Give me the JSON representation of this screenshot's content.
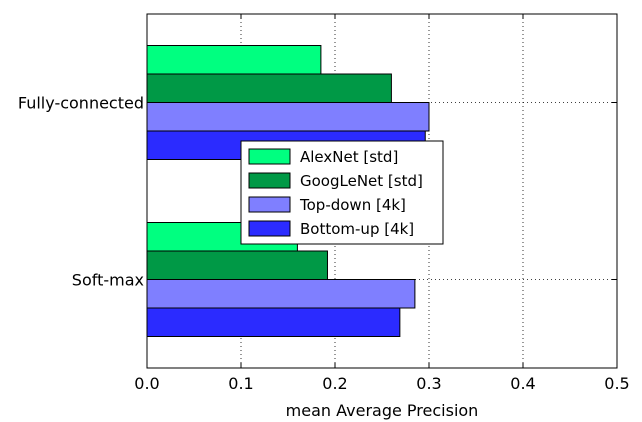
{
  "chart_data": {
    "type": "bar",
    "orientation": "horizontal",
    "categories": [
      "Fully-connected",
      "Soft-max"
    ],
    "series": [
      {
        "name": "AlexNet [std]",
        "color": "#00ff80",
        "values": [
          0.185,
          0.16
        ]
      },
      {
        "name": "GoogLeNet [std]",
        "color": "#009946",
        "values": [
          0.26,
          0.192
        ]
      },
      {
        "name": "Top-down [4k]",
        "color": "#7f7fff",
        "values": [
          0.3,
          0.285
        ]
      },
      {
        "name": "Bottom-up [4k]",
        "color": "#2b2bff",
        "values": [
          0.296,
          0.269
        ]
      }
    ],
    "xlabel": "mean Average Precision",
    "ylabel": "",
    "xlim": [
      0.0,
      0.5
    ],
    "xticks": [
      "0.0",
      "0.1",
      "0.2",
      "0.3",
      "0.4",
      "0.5"
    ],
    "grid": true,
    "grid_style": "dotted",
    "legend_position": "center"
  }
}
